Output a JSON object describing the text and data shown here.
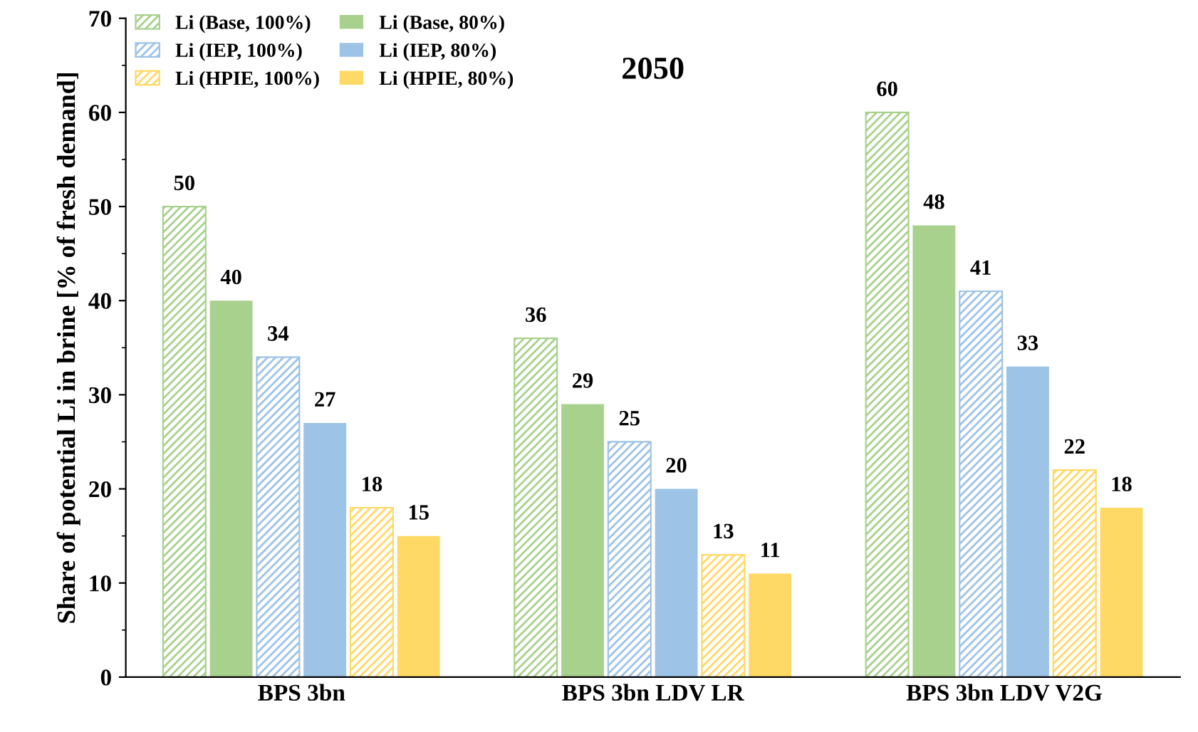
{
  "chart_data": {
    "type": "bar",
    "title": "2050",
    "ylabel": "Share of potential Li in brine [% of fresh demand]",
    "categories": [
      "BPS 3bn",
      "BPS 3bn LDV LR",
      "BPS 3bn LDV V2G"
    ],
    "series": [
      {
        "name": "Li (Base, 100%)",
        "color": "#a9d18e",
        "values": [
          50,
          36,
          60
        ]
      },
      {
        "name": "Li (Base, 80%)",
        "color": "#a9d18e",
        "values": [
          40,
          29,
          48
        ]
      },
      {
        "name": "Li (IEP, 100%)",
        "color": "#9dc3e6",
        "values": [
          34,
          25,
          41
        ]
      },
      {
        "name": "Li (IEP, 80%)",
        "color": "#9dc3e6",
        "values": [
          27,
          20,
          33
        ]
      },
      {
        "name": "Li (HPIE, 100%)",
        "color": "#ffd966",
        "values": [
          18,
          13,
          22
        ]
      },
      {
        "name": "Li (HPIE, 80%)",
        "color": "#ffd966",
        "values": [
          15,
          11,
          18
        ]
      }
    ],
    "ylim": [
      0,
      70
    ],
    "yticks": [
      0,
      10,
      20,
      30,
      40,
      50,
      60,
      70
    ],
    "grid": false,
    "legend": "top left",
    "data_labels": true
  }
}
